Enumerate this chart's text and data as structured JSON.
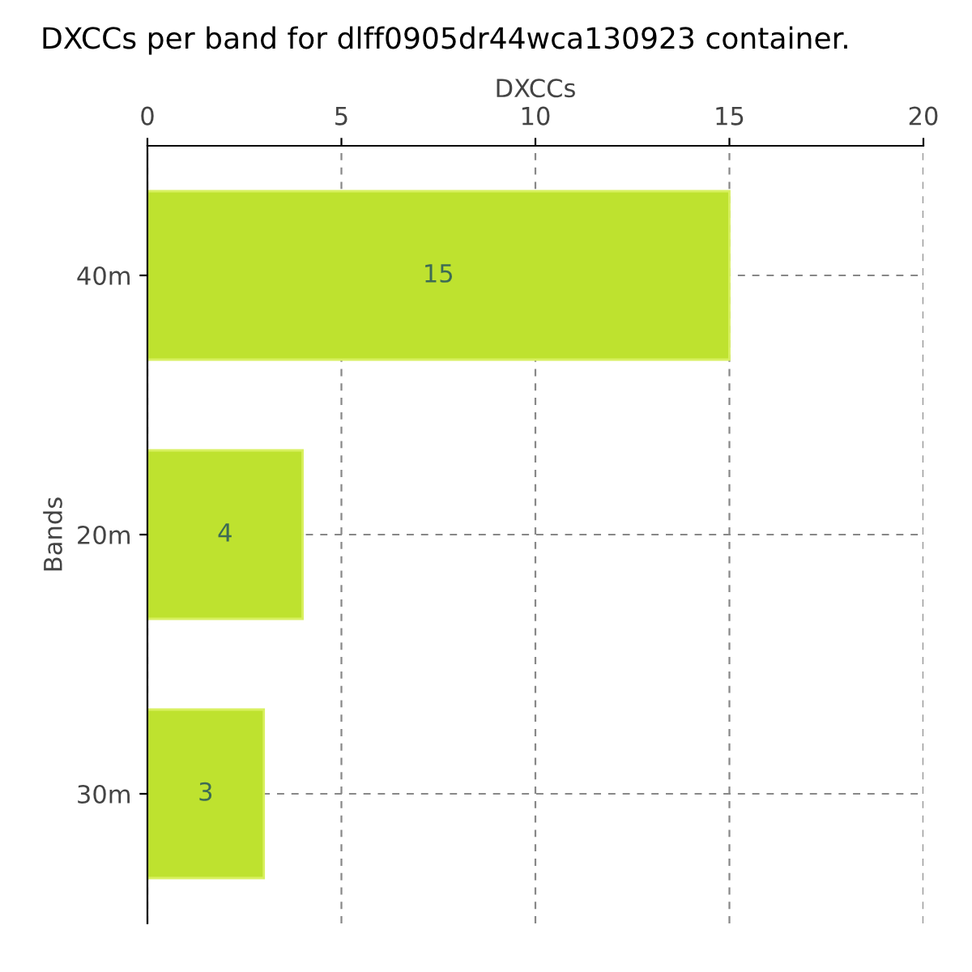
{
  "chart_data": {
    "type": "bar",
    "orientation": "horizontal",
    "title": "DXCCs per band for dlff0905dr44wca130923 container.",
    "xlabel": "DXCCs",
    "ylabel": "Bands",
    "categories": [
      "40m",
      "20m",
      "30m"
    ],
    "values": [
      15,
      4,
      3
    ],
    "color": "#bee22f",
    "xlim": [
      0,
      20
    ],
    "xticks": [
      0,
      5,
      10,
      15,
      20
    ],
    "grid": true,
    "data_labels": true
  }
}
